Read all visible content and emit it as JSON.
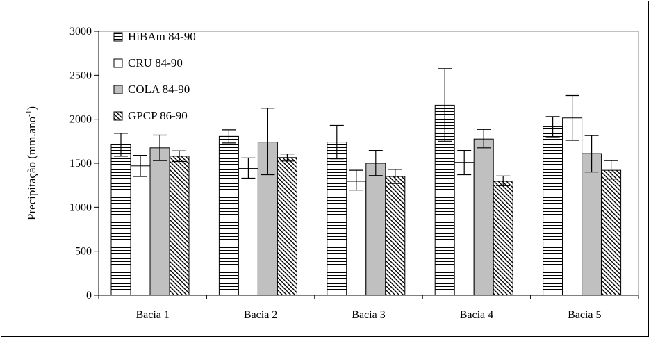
{
  "chart_data": {
    "type": "bar",
    "categories": [
      "Bacia 1",
      "Bacia 2",
      "Bacia 3",
      "Bacia 4",
      "Bacia 5"
    ],
    "series": [
      {
        "name": "HiBAm 84-90",
        "pattern": "horizontal-lines",
        "fill": "#ffffff",
        "values": [
          1710,
          1805,
          1740,
          2160,
          1915
        ],
        "error": [
          [
            1580,
            1840
          ],
          [
            1730,
            1880
          ],
          [
            1550,
            1930
          ],
          [
            1750,
            2575
          ],
          [
            1800,
            2030
          ]
        ]
      },
      {
        "name": "CRU 84-90",
        "pattern": "solid",
        "fill": "#ffffff",
        "values": [
          1470,
          1440,
          1295,
          1510,
          2015
        ],
        "error": [
          [
            1350,
            1590
          ],
          [
            1330,
            1560
          ],
          [
            1195,
            1420
          ],
          [
            1370,
            1645
          ],
          [
            1760,
            2270
          ]
        ]
      },
      {
        "name": "COLA 84-90",
        "pattern": "solid",
        "fill": "#c0c0c0",
        "values": [
          1675,
          1740,
          1500,
          1775,
          1610
        ],
        "error": [
          [
            1530,
            1820
          ],
          [
            1370,
            2125
          ],
          [
            1360,
            1645
          ],
          [
            1675,
            1885
          ],
          [
            1400,
            1815
          ]
        ]
      },
      {
        "name": "GPCP 86-90",
        "pattern": "diagonal-lines",
        "fill": "#ffffff",
        "values": [
          1580,
          1565,
          1350,
          1295,
          1420
        ],
        "error": [
          [
            1520,
            1640
          ],
          [
            1525,
            1605
          ],
          [
            1270,
            1430
          ],
          [
            1245,
            1355
          ],
          [
            1320,
            1530
          ]
        ]
      }
    ],
    "ylabel": "Precipitação (mm.ano",
    "ylabel_sup": "-1",
    "ylabel_close": ")",
    "ylim": [
      0,
      3000
    ],
    "yticks": [
      0,
      500,
      1000,
      1500,
      2000,
      2500,
      3000
    ],
    "ytick_labels": [
      "0",
      "500",
      "1000",
      "1500",
      "2000",
      "2500",
      "3000"
    ],
    "grid": false,
    "legend_position": "top-left"
  }
}
